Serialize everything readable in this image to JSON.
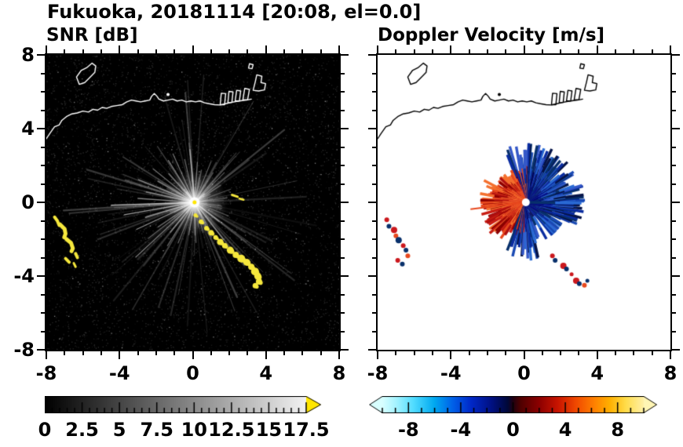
{
  "header": {
    "title": "Fukuoka, 20181114 [20:08, el=0.0]"
  },
  "panels": {
    "snr": {
      "title": "SNR [dB]"
    },
    "velocity": {
      "title": "Doppler Velocity [m/s]"
    }
  },
  "axes": {
    "xlim": [
      -8,
      8
    ],
    "ylim": [
      -8,
      8
    ],
    "major_ticks": [
      -8,
      -4,
      0,
      4,
      8
    ],
    "major_labels": [
      "-8",
      "-4",
      "0",
      "4",
      "8"
    ],
    "minor_step": 1
  },
  "colorbars": {
    "snr": {
      "range": [
        0,
        17.5
      ],
      "tick_values": [
        0,
        2.5,
        5,
        7.5,
        10,
        12.5,
        15,
        17.5
      ],
      "tick_labels": [
        "0",
        "2.5",
        "5",
        "7.5",
        "10",
        "12.5",
        "15",
        "17.5"
      ],
      "minor_step": 0.5,
      "gradient": [
        "#000000",
        "#f2f2f2"
      ],
      "overflow_arrow_color": "#ffe600"
    },
    "velocity": {
      "range": [
        -10,
        10
      ],
      "tick_values": [
        -8,
        -4,
        0,
        4,
        8
      ],
      "tick_labels": [
        "-8",
        "-4",
        "0",
        "4",
        "8"
      ],
      "minor_step": 1,
      "gradient_stops": [
        [
          0.0,
          "#d8ffff"
        ],
        [
          0.05,
          "#a8f4ff"
        ],
        [
          0.12,
          "#50dcff"
        ],
        [
          0.2,
          "#00a8f0"
        ],
        [
          0.27,
          "#0060e8"
        ],
        [
          0.34,
          "#0028c8"
        ],
        [
          0.42,
          "#001080"
        ],
        [
          0.48,
          "#000838"
        ],
        [
          0.5,
          "#200010"
        ],
        [
          0.53,
          "#500000"
        ],
        [
          0.6,
          "#8c0000"
        ],
        [
          0.67,
          "#c81400"
        ],
        [
          0.74,
          "#f04800"
        ],
        [
          0.81,
          "#ff8000"
        ],
        [
          0.87,
          "#ffb000"
        ],
        [
          0.93,
          "#ffdc48"
        ],
        [
          1.0,
          "#fff0a8"
        ]
      ],
      "left_arrow_color": "#d8ffff",
      "right_arrow_color": "#fff5b4"
    }
  },
  "chart_data": [
    {
      "type": "heatmap",
      "title": "SNR [dB]",
      "variable": "radar signal-to-noise ratio",
      "units": "dB",
      "xlim": [
        -8,
        8
      ],
      "ylim": [
        -8,
        8
      ],
      "value_range": [
        0,
        17.5
      ],
      "colormap": "grayscale black(0) to white(17.5) with yellow overflow",
      "background": "#000000",
      "features": {
        "beam_fan": {
          "center": [
            0.1,
            0.0
          ],
          "ray_count": 170,
          "max_range": 4.6,
          "bright_rays": [
            [
              182,
              4.55,
              1.5,
              0.7
            ],
            [
              190,
              3.9,
              1.2,
              0.6
            ],
            [
              197,
              2.8,
              1.7,
              0.5
            ],
            [
              205,
              3.5,
              1.3,
              0.55
            ],
            [
              214,
              2.4,
              1.5,
              0.4
            ],
            [
              218,
              3.2,
              1.1,
              0.45
            ],
            [
              223,
              4.4,
              1.2,
              0.5
            ],
            [
              231,
              2.1,
              1.6,
              0.35
            ],
            [
              238,
              2.8,
              1.2,
              0.4
            ],
            [
              248,
              2.4,
              1.3,
              0.4
            ],
            [
              260,
              1.8,
              1.2,
              0.3
            ],
            [
              272,
              2.2,
              1.4,
              0.35
            ],
            [
              286,
              1.7,
              1.2,
              0.3
            ],
            [
              296,
              2.1,
              1.5,
              0.35
            ],
            [
              308,
              2.6,
              1.2,
              0.4
            ],
            [
              322,
              1.7,
              1.5,
              0.3
            ],
            [
              338,
              2.0,
              1.3,
              0.3
            ],
            [
              352,
              1.5,
              1.2,
              0.25
            ],
            [
              8,
              1.8,
              1.3,
              0.3
            ],
            [
              20,
              2.1,
              1.1,
              0.3
            ],
            [
              33,
              1.7,
              1.5,
              0.3
            ],
            [
              45,
              2.3,
              1.2,
              0.35
            ],
            [
              58,
              1.9,
              1.4,
              0.3
            ],
            [
              68,
              2.4,
              1.1,
              0.4
            ],
            [
              78,
              1.8,
              1.6,
              0.3
            ],
            [
              86,
              2.2,
              1.2,
              0.35
            ],
            [
              95,
              2.9,
              1.4,
              0.45
            ],
            [
              103,
              2.4,
              1.2,
              0.4
            ],
            [
              114,
              2.9,
              1.2,
              0.45
            ],
            [
              122,
              2.7,
              1.2,
              0.5
            ],
            [
              132,
              2.1,
              1.6,
              0.4
            ],
            [
              141,
              2.9,
              1.2,
              0.45
            ],
            [
              150,
              2.3,
              2.0,
              0.4
            ],
            [
              158,
              3.3,
              1.3,
              0.5
            ],
            [
              168,
              2.7,
              1.8,
              0.45
            ],
            [
              176,
              3.1,
              1.4,
              0.5
            ]
          ]
        },
        "sea_clutter": {
          "color": "#f5e73c",
          "strokes": [
            {
              "w": 4,
              "pts": [
                [
                  -7.55,
                  -0.8
                ],
                [
                  -7.4,
                  -1.0
                ],
                [
                  -7.3,
                  -1.25
                ]
              ]
            },
            {
              "w": 5,
              "pts": [
                [
                  -7.25,
                  -1.2
                ],
                [
                  -7.0,
                  -1.45
                ],
                [
                  -6.95,
                  -1.7
                ],
                [
                  -7.02,
                  -1.9
                ]
              ]
            },
            {
              "w": 5,
              "pts": [
                [
                  -6.9,
                  -2.0
                ],
                [
                  -6.65,
                  -2.2
                ],
                [
                  -6.55,
                  -2.5
                ],
                [
                  -6.62,
                  -2.65
                ]
              ]
            },
            {
              "w": 4,
              "pts": [
                [
                  -6.4,
                  -2.78
                ],
                [
                  -6.3,
                  -3.0
                ]
              ]
            },
            {
              "w": 4,
              "pts": [
                [
                  -6.95,
                  -3.05
                ],
                [
                  -6.75,
                  -3.25
                ]
              ]
            },
            {
              "w": 3,
              "pts": [
                [
                  -6.5,
                  -3.3
                ],
                [
                  -6.4,
                  -3.5
                ]
              ]
            }
          ],
          "chain": [
            [
              0.15,
              -0.7,
              2.5
            ],
            [
              0.45,
              -1.05,
              3
            ],
            [
              0.75,
              -1.4,
              3
            ],
            [
              1.0,
              -1.65,
              3.5
            ],
            [
              1.25,
              -1.9,
              3
            ],
            [
              1.5,
              -2.15,
              4
            ],
            [
              1.75,
              -2.35,
              3.5
            ],
            [
              2.05,
              -2.6,
              4.5
            ],
            [
              2.35,
              -2.85,
              4
            ],
            [
              2.65,
              -3.05,
              5
            ],
            [
              2.95,
              -3.25,
              4.5
            ],
            [
              3.2,
              -3.5,
              4
            ],
            [
              3.4,
              -3.75,
              5
            ],
            [
              3.55,
              -4.0,
              4.5
            ],
            [
              3.62,
              -4.3,
              4
            ],
            [
              3.42,
              -4.52,
              3.5
            ]
          ],
          "dashes": [
            {
              "w": 3,
              "pts": [
                [
                  2.15,
                  0.4
                ],
                [
                  2.45,
                  0.3
                ]
              ]
            },
            {
              "w": 2.5,
              "pts": [
                [
                  2.55,
                  0.2
                ],
                [
                  2.78,
                  0.14
                ]
              ]
            }
          ]
        },
        "coastline": {
          "main": [
            [
              -8,
              3.45
            ],
            [
              -7.8,
              3.75
            ],
            [
              -7.55,
              4.1
            ],
            [
              -7.3,
              4.2
            ],
            [
              -7.15,
              4.45
            ],
            [
              -6.9,
              4.65
            ],
            [
              -6.6,
              4.8
            ],
            [
              -6.3,
              4.85
            ],
            [
              -6.0,
              4.95
            ],
            [
              -5.7,
              4.9
            ],
            [
              -5.45,
              5.05
            ],
            [
              -5.2,
              5.0
            ],
            [
              -4.95,
              5.15
            ],
            [
              -4.7,
              5.1
            ],
            [
              -4.45,
              5.2
            ],
            [
              -4.15,
              5.25
            ],
            [
              -3.85,
              5.3
            ],
            [
              -3.6,
              5.45
            ],
            [
              -3.35,
              5.55
            ],
            [
              -3.1,
              5.5
            ],
            [
              -2.85,
              5.45
            ],
            [
              -2.6,
              5.5
            ],
            [
              -2.35,
              5.55
            ],
            [
              -2.25,
              5.75
            ],
            [
              -2.1,
              5.9
            ],
            [
              -1.95,
              5.75
            ],
            [
              -1.85,
              5.6
            ],
            [
              -1.6,
              5.5
            ],
            [
              -1.35,
              5.55
            ],
            [
              -1.1,
              5.6
            ],
            [
              -0.85,
              5.5
            ],
            [
              -0.6,
              5.55
            ],
            [
              -0.35,
              5.45
            ],
            [
              -0.1,
              5.5
            ],
            [
              0.15,
              5.45
            ],
            [
              0.4,
              5.5
            ],
            [
              0.65,
              5.4
            ],
            [
              0.9,
              5.35
            ],
            [
              1.2,
              5.3
            ],
            [
              1.5,
              5.28
            ],
            [
              1.8,
              5.35
            ],
            [
              2.1,
              5.42
            ],
            [
              2.4,
              5.48
            ],
            [
              2.7,
              5.52
            ],
            [
              3.0,
              5.56
            ],
            [
              3.2,
              5.6
            ]
          ],
          "island": [
            [
              -6.2,
              6.4
            ],
            [
              -6.35,
              6.8
            ],
            [
              -6.1,
              7.15
            ],
            [
              -5.8,
              7.3
            ],
            [
              -5.5,
              7.55
            ],
            [
              -5.3,
              7.4
            ],
            [
              -5.35,
              7.05
            ],
            [
              -5.6,
              6.8
            ],
            [
              -5.9,
              6.5
            ]
          ],
          "piers": [
            [
              [
                1.5,
                5.3
              ],
              [
                1.56,
                5.92
              ],
              [
                1.8,
                5.9
              ],
              [
                1.74,
                5.3
              ]
            ],
            [
              [
                1.92,
                5.4
              ],
              [
                1.98,
                6.02
              ],
              [
                2.2,
                5.99
              ],
              [
                2.14,
                5.42
              ]
            ],
            [
              [
                2.32,
                5.5
              ],
              [
                2.4,
                6.08
              ],
              [
                2.62,
                6.04
              ],
              [
                2.55,
                5.5
              ]
            ],
            [
              [
                2.74,
                5.56
              ],
              [
                2.84,
                6.18
              ],
              [
                3.1,
                6.13
              ],
              [
                3.0,
                5.58
              ]
            ]
          ],
          "block": [
            [
              3.3,
              6.08
            ],
            [
              3.42,
              6.55
            ],
            [
              3.5,
              6.92
            ],
            [
              3.78,
              6.84
            ],
            [
              3.73,
              6.5
            ],
            [
              3.98,
              6.44
            ],
            [
              3.92,
              6.1
            ],
            [
              3.6,
              6.04
            ]
          ],
          "small_mark": [
            [
              3.05,
              7.28
            ],
            [
              3.1,
              7.52
            ],
            [
              3.3,
              7.47
            ],
            [
              3.24,
              7.25
            ]
          ],
          "islet": [
            -1.35,
            5.85
          ]
        }
      }
    },
    {
      "type": "heatmap",
      "title": "Doppler Velocity [m/s]",
      "variable": "radial Doppler velocity",
      "units": "m/s",
      "xlim": [
        -8,
        8
      ],
      "ylim": [
        -8,
        8
      ],
      "value_range": [
        -10,
        10
      ],
      "colormap": "cyan-blue(negative) through dark(0) to red-orange-yellow(positive)",
      "background": "#ffffff",
      "features": {
        "fan": {
          "center": [
            0.1,
            0.0
          ],
          "red_sector_deg": [
            102,
            257
          ],
          "red_max_range": 2.6,
          "blue_max_range": 3.3,
          "long_red_ray": {
            "az": 187,
            "range": 3.05
          }
        },
        "echo_blobs": [
          [
            -7.5,
            -0.95,
            3,
            "#cb181d"
          ],
          [
            -7.38,
            -1.3,
            3,
            "#08306b"
          ],
          [
            -7.1,
            -1.5,
            4,
            "#cb181d"
          ],
          [
            -7.0,
            -1.82,
            3,
            "#e8491e"
          ],
          [
            -6.85,
            -2.05,
            4,
            "#08306b"
          ],
          [
            -6.6,
            -2.35,
            3,
            "#cb181d"
          ],
          [
            -6.45,
            -2.6,
            3,
            "#08306b"
          ],
          [
            -6.35,
            -2.9,
            3,
            "#e8491e"
          ],
          [
            -6.9,
            -3.15,
            3,
            "#cb181d"
          ],
          [
            -6.65,
            -3.35,
            3,
            "#08306b"
          ],
          [
            1.55,
            -2.9,
            3,
            "#cb181d"
          ],
          [
            1.7,
            -3.15,
            3,
            "#08306b"
          ],
          [
            2.15,
            -3.45,
            4,
            "#cb181d"
          ],
          [
            2.32,
            -3.62,
            3,
            "#08306b"
          ],
          [
            2.6,
            -3.9,
            2.5,
            "#cb181d"
          ],
          [
            2.85,
            -4.25,
            4,
            "#cb181d"
          ],
          [
            3.02,
            -4.42,
            3,
            "#08306b"
          ],
          [
            3.3,
            -4.5,
            3,
            "#e8491e"
          ],
          [
            3.46,
            -4.25,
            2.5,
            "#08306b"
          ]
        ],
        "coastline_note": "same coastline geometry as SNR panel, drawn in black"
      }
    }
  ]
}
